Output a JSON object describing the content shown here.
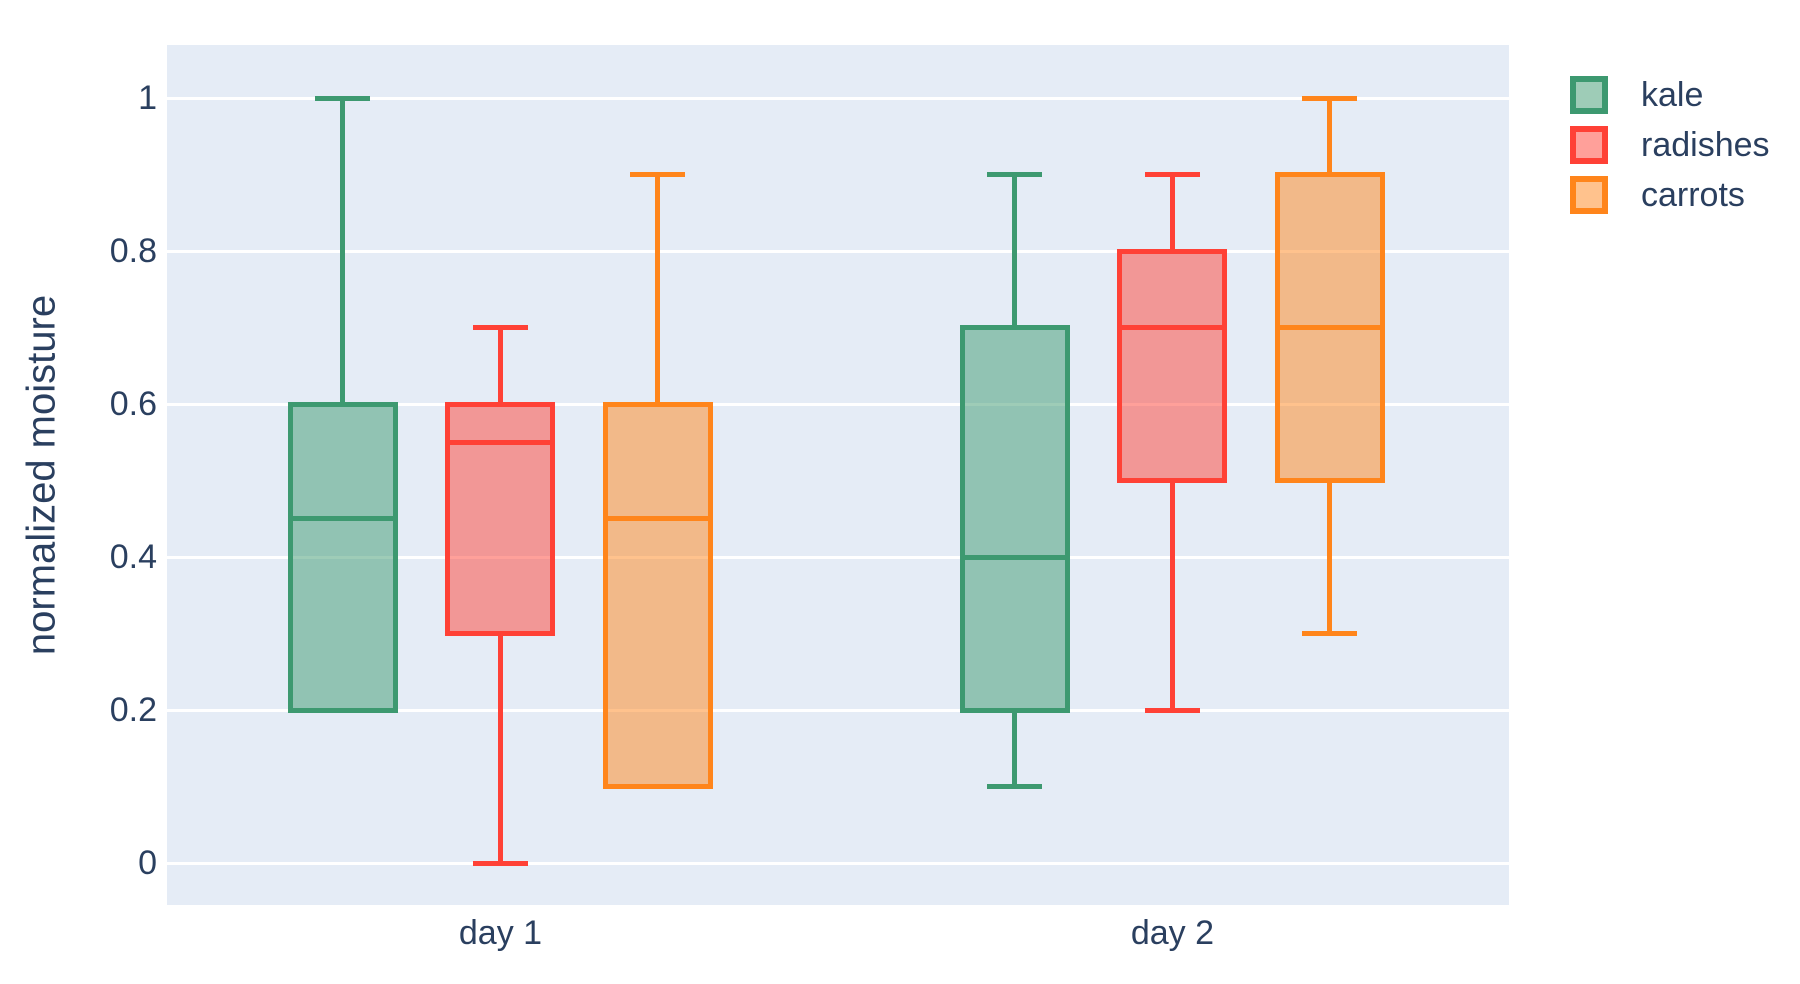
{
  "colors": {
    "plot_background": "#E5ECF6",
    "gridline": "#FFFFFF",
    "text": "#2a3f5f",
    "kale": "#3D9970",
    "radishes": "#FF4136",
    "carrots": "#FF851B"
  },
  "chart_data": {
    "type": "box",
    "title": "",
    "xlabel": "",
    "ylabel": "normalized moisture",
    "categories": [
      "day 1",
      "day 2"
    ],
    "yticks": [
      0,
      0.2,
      0.4,
      0.6,
      0.8,
      1
    ],
    "ylim": [
      -0.055,
      1.07
    ],
    "grid": true,
    "legend_position": "top-right",
    "boxmode": "group",
    "series": [
      {
        "name": "kale",
        "color": "#3D9970",
        "boxes": [
          {
            "category": "day 1",
            "min": 0.2,
            "q1": 0.2,
            "median": 0.45,
            "q3": 0.6,
            "max": 1.0
          },
          {
            "category": "day 2",
            "min": 0.1,
            "q1": 0.2,
            "median": 0.4,
            "q3": 0.7,
            "max": 0.9
          }
        ]
      },
      {
        "name": "radishes",
        "color": "#FF4136",
        "boxes": [
          {
            "category": "day 1",
            "min": 0.0,
            "q1": 0.3,
            "median": 0.55,
            "q3": 0.6,
            "max": 0.7
          },
          {
            "category": "day 2",
            "min": 0.2,
            "q1": 0.5,
            "median": 0.7,
            "q3": 0.8,
            "max": 0.9
          }
        ]
      },
      {
        "name": "carrots",
        "color": "#FF851B",
        "boxes": [
          {
            "category": "day 1",
            "min": 0.1,
            "q1": 0.1,
            "median": 0.45,
            "q3": 0.6,
            "max": 0.9
          },
          {
            "category": "day 2",
            "min": 0.3,
            "q1": 0.5,
            "median": 0.7,
            "q3": 0.9,
            "max": 1.0
          }
        ]
      }
    ]
  }
}
